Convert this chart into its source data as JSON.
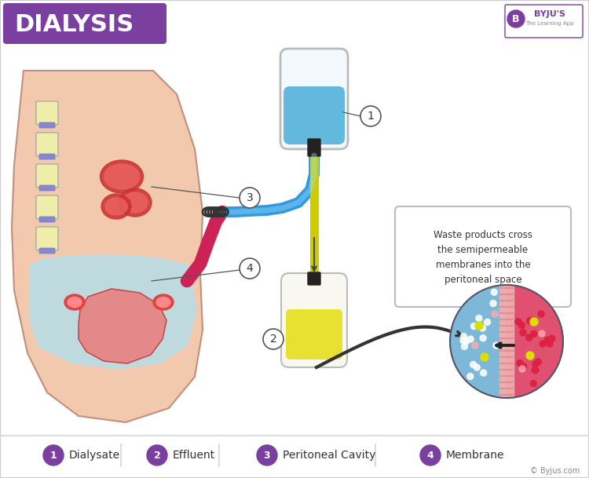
{
  "title": "DIALYSIS",
  "title_bg_color": "#7B3FA0",
  "title_text_color": "#FFFFFF",
  "title_fontsize": 22,
  "bg_color": "#FFFFFF",
  "border_color": "#CCCCCC",
  "legend_items": [
    {
      "number": "1",
      "label": "Dialysate"
    },
    {
      "number": "2",
      "label": "Effluent"
    },
    {
      "number": "3",
      "label": "Peritoneal Cavity"
    },
    {
      "number": "4",
      "label": "Membrane"
    }
  ],
  "legend_circle_color": "#7B3FA0",
  "annotation_text": "Waste products cross\nthe semipermeable\nmembranes into the\nperitoneal space",
  "byju_text": "© Byjus.com",
  "purple": "#7B3FA0",
  "light_pink": "#F2C0A0",
  "light_blue": "#AEE0F0",
  "blue": "#4AAED8",
  "dark_blue": "#2288C0",
  "dark_gray": "#333333",
  "gray": "#888888",
  "light_gray": "#DDDDDD",
  "tube_blue": "#3399DD",
  "tube_yellow": "#CCCC00",
  "tube_red": "#CC2255"
}
